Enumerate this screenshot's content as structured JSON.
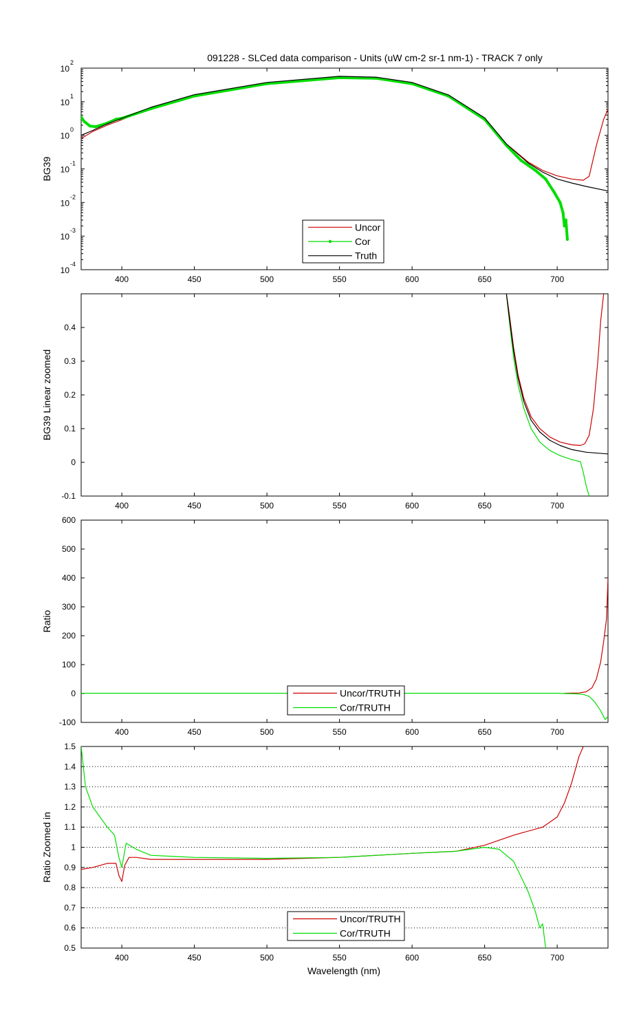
{
  "figure": {
    "title": "091228 - SLCed data comparison - Units (uW cm-2 sr-1 nm-1) - TRACK 7 only",
    "xlabel": "Wavelength (nm)"
  },
  "colors": {
    "uncor": "#cc0000",
    "cor": "#00dd00",
    "truth": "#000000",
    "grid": "#000000"
  },
  "chart_data": [
    {
      "type": "line",
      "ylabel": "BG39",
      "yscale": "log",
      "xlim": [
        372,
        735
      ],
      "ylim": [
        0.0001,
        100
      ],
      "x_ticks": [
        400,
        450,
        500,
        550,
        600,
        650,
        700
      ],
      "y_tick_bases": [
        "10",
        "10",
        "10",
        "10",
        "10",
        "10",
        "10"
      ],
      "y_tick_exponents": [
        "2",
        "1",
        "0",
        "-1",
        "-2",
        "-3",
        "-4"
      ],
      "legend": {
        "position": "bottom-center",
        "entries": [
          "Uncor",
          "Cor",
          "Truth"
        ]
      },
      "series": [
        {
          "name": "Uncor",
          "color_key": "uncor",
          "x": [
            372,
            380,
            390,
            400,
            420,
            450,
            500,
            550,
            575,
            600,
            625,
            650,
            665,
            680,
            690,
            700,
            710,
            718,
            722,
            727,
            732,
            735
          ],
          "y": [
            0.8,
            1.3,
            2.0,
            2.9,
            6.5,
            15.5,
            36,
            55,
            52,
            36,
            15.5,
            3.2,
            0.55,
            0.16,
            0.09,
            0.062,
            0.05,
            0.046,
            0.06,
            0.5,
            3.0,
            6.0
          ]
        },
        {
          "name": "Cor",
          "color_key": "cor",
          "x": [
            372,
            374,
            378,
            382,
            390,
            396,
            400,
            420,
            450,
            500,
            550,
            575,
            600,
            625,
            650,
            665,
            675,
            685,
            692,
            698,
            702,
            704,
            705,
            706,
            707
          ],
          "y": [
            3.5,
            2.6,
            1.9,
            1.8,
            2.3,
            3.0,
            3.2,
            6.2,
            14.8,
            34.5,
            52,
            50,
            34.5,
            14.8,
            3.0,
            0.5,
            0.18,
            0.09,
            0.05,
            0.02,
            0.01,
            0.005,
            0.002,
            0.003,
            0.0008
          ]
        },
        {
          "name": "Truth",
          "color_key": "truth",
          "x": [
            372,
            380,
            390,
            400,
            420,
            450,
            500,
            550,
            575,
            600,
            625,
            650,
            665,
            680,
            690,
            700,
            710,
            720,
            735
          ],
          "y": [
            1.0,
            1.4,
            2.2,
            3.2,
            6.8,
            16.2,
            37.5,
            57,
            54,
            37.5,
            16,
            3.3,
            0.55,
            0.15,
            0.08,
            0.05,
            0.038,
            0.03,
            0.022
          ]
        }
      ]
    },
    {
      "type": "line",
      "ylabel": "BG39 Linear zoomed",
      "xlim": [
        372,
        735
      ],
      "ylim": [
        -0.1,
        0.5
      ],
      "x_ticks": [
        400,
        450,
        500,
        550,
        600,
        650,
        700
      ],
      "y_ticks": [
        -0.1,
        0,
        0.1,
        0.2,
        0.3,
        0.4
      ],
      "y_tick_labels": [
        "-0.1",
        "0",
        "0.1",
        "0.2",
        "0.3",
        "0.4"
      ],
      "series": [
        {
          "name": "Uncor",
          "color_key": "uncor",
          "x": [
            665,
            667,
            670,
            673,
            677,
            682,
            688,
            695,
            702,
            710,
            716,
            719,
            722,
            725,
            728,
            730,
            732
          ],
          "y": [
            0.5,
            0.44,
            0.34,
            0.26,
            0.19,
            0.135,
            0.1,
            0.075,
            0.06,
            0.052,
            0.05,
            0.055,
            0.08,
            0.16,
            0.3,
            0.42,
            0.5
          ]
        },
        {
          "name": "Cor",
          "color_key": "cor",
          "x": [
            665,
            667,
            670,
            673,
            677,
            682,
            688,
            695,
            702,
            710,
            716,
            718,
            720,
            722
          ],
          "y": [
            0.5,
            0.42,
            0.31,
            0.23,
            0.16,
            0.1,
            0.06,
            0.035,
            0.02,
            0.008,
            0.002,
            -0.03,
            -0.07,
            -0.1
          ]
        },
        {
          "name": "Truth",
          "color_key": "truth",
          "x": [
            665,
            667,
            670,
            673,
            677,
            682,
            688,
            695,
            702,
            710,
            720,
            735
          ],
          "y": [
            0.5,
            0.43,
            0.33,
            0.25,
            0.18,
            0.125,
            0.09,
            0.065,
            0.05,
            0.038,
            0.03,
            0.025
          ]
        }
      ]
    },
    {
      "type": "line",
      "ylabel": "Ratio",
      "xlim": [
        372,
        735
      ],
      "ylim": [
        -100,
        600
      ],
      "x_ticks": [
        400,
        450,
        500,
        550,
        600,
        650,
        700
      ],
      "y_ticks": [
        -100,
        0,
        100,
        200,
        300,
        400,
        500,
        600
      ],
      "y_tick_labels": [
        "-100",
        "0",
        "100",
        "200",
        "300",
        "400",
        "500",
        "600"
      ],
      "legend": {
        "position": "bottom-center",
        "entries": [
          "Uncor/TRUTH",
          "Cor/TRUTH"
        ]
      },
      "series": [
        {
          "name": "Uncor/TRUTH",
          "color_key": "uncor",
          "x": [
            705,
            715,
            720,
            724,
            727,
            730,
            732,
            734,
            735
          ],
          "y": [
            1,
            2,
            6,
            20,
            50,
            110,
            180,
            260,
            400
          ]
        },
        {
          "name": "Cor/TRUTH",
          "color_key": "cor",
          "x": [
            372,
            700,
            712,
            718,
            722,
            726,
            730,
            733,
            735
          ],
          "y": [
            0.95,
            0.9,
            -1,
            -3,
            -10,
            -30,
            -60,
            -90,
            -80
          ]
        }
      ]
    },
    {
      "type": "line",
      "ylabel": "Ratio Zoomed in",
      "grid": "horizontal dotted",
      "xlim": [
        372,
        735
      ],
      "ylim": [
        0.5,
        1.5
      ],
      "x_ticks": [
        400,
        450,
        500,
        550,
        600,
        650,
        700
      ],
      "y_ticks": [
        0.5,
        0.6,
        0.7,
        0.8,
        0.9,
        1.0,
        1.1,
        1.2,
        1.3,
        1.4,
        1.5
      ],
      "y_tick_labels": [
        "0.5",
        "0.6",
        "0.7",
        "0.8",
        "0.9",
        "1",
        "1.1",
        "1.2",
        "1.3",
        "1.4",
        "1.5"
      ],
      "legend": {
        "position": "bottom-center",
        "entries": [
          "Uncor/TRUTH",
          "Cor/TRUTH"
        ]
      },
      "series": [
        {
          "name": "Uncor/TRUTH",
          "color_key": "uncor",
          "x": [
            372,
            380,
            390,
            396,
            398,
            400,
            402,
            405,
            410,
            420,
            450,
            500,
            550,
            600,
            630,
            650,
            670,
            690,
            700,
            705,
            710,
            715,
            718
          ],
          "y": [
            0.89,
            0.9,
            0.92,
            0.92,
            0.86,
            0.83,
            0.91,
            0.95,
            0.95,
            0.94,
            0.94,
            0.94,
            0.95,
            0.97,
            0.98,
            1.01,
            1.06,
            1.1,
            1.15,
            1.22,
            1.32,
            1.45,
            1.5
          ]
        },
        {
          "name": "Cor/TRUTH",
          "color_key": "cor",
          "x": [
            372,
            375,
            380,
            385,
            390,
            395,
            398,
            400,
            403,
            410,
            420,
            450,
            500,
            550,
            600,
            630,
            650,
            660,
            670,
            680,
            685,
            688,
            690,
            692
          ],
          "y": [
            1.5,
            1.3,
            1.2,
            1.15,
            1.1,
            1.06,
            0.95,
            0.9,
            1.02,
            0.99,
            0.96,
            0.95,
            0.945,
            0.95,
            0.97,
            0.98,
            1.0,
            0.99,
            0.93,
            0.78,
            0.68,
            0.6,
            0.62,
            0.5
          ]
        }
      ]
    }
  ]
}
